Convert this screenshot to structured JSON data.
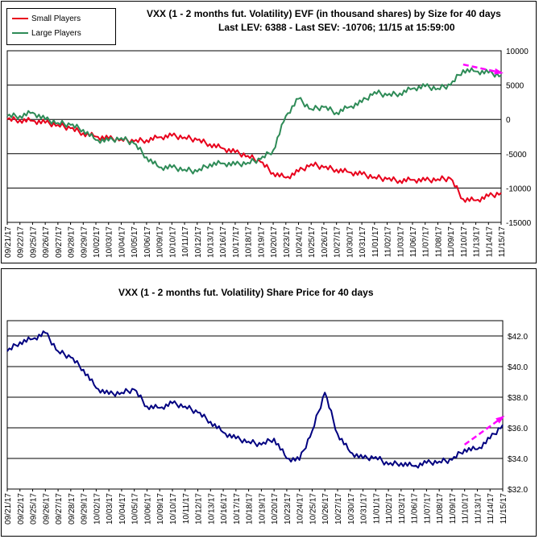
{
  "chart_data": [
    {
      "type": "line",
      "title": "VXX (1 - 2 months fut. Volatility) EVF (in thousand shares) by Size for 40 days",
      "subtitle": "Last LEV: 6388 - Last SEV: -10706; 11/15 at 15:59:00",
      "ylim": [
        -15000,
        10000
      ],
      "y_ticks": [
        "10000",
        "5000",
        "0",
        "-5000",
        "-10000",
        "-15000"
      ],
      "y_tick_values": [
        10000,
        5000,
        0,
        -5000,
        -10000,
        -15000
      ],
      "categories": [
        "09/21/17",
        "09/22/17",
        "09/25/17",
        "09/26/17",
        "09/27/17",
        "09/28/17",
        "09/29/17",
        "10/02/17",
        "10/03/17",
        "10/04/17",
        "10/05/17",
        "10/06/17",
        "10/09/17",
        "10/10/17",
        "10/11/17",
        "10/12/17",
        "10/13/17",
        "10/16/17",
        "10/17/17",
        "10/18/17",
        "10/19/17",
        "10/20/17",
        "10/23/17",
        "10/24/17",
        "10/25/17",
        "10/26/17",
        "10/27/17",
        "10/30/17",
        "10/31/17",
        "11/01/17",
        "11/02/17",
        "11/03/17",
        "11/06/17",
        "11/07/17",
        "11/08/17",
        "11/09/17",
        "11/10/17",
        "11/13/17",
        "11/14/17",
        "11/15/17"
      ],
      "series": [
        {
          "name": "Small Players",
          "color": "#e8001c",
          "values": [
            0,
            -100,
            -200,
            -500,
            -800,
            -1300,
            -2000,
            -2500,
            -2800,
            -2900,
            -3200,
            -3000,
            -2600,
            -2400,
            -2600,
            -3000,
            -3600,
            -4200,
            -4800,
            -5300,
            -6200,
            -7800,
            -8500,
            -7600,
            -6500,
            -7000,
            -7300,
            -7700,
            -8000,
            -8400,
            -8700,
            -8900,
            -8800,
            -8900,
            -8700,
            -8600,
            -11600,
            -11800,
            -11200,
            -10706
          ]
        },
        {
          "name": "Large Players",
          "color": "#2e8b57",
          "values": [
            500,
            500,
            1000,
            0,
            -500,
            -800,
            -1500,
            -3000,
            -3100,
            -2700,
            -3500,
            -5500,
            -7000,
            -7000,
            -7300,
            -7600,
            -6500,
            -6400,
            -6600,
            -6300,
            -5800,
            -4500,
            500,
            3000,
            1500,
            1800,
            1000,
            1800,
            2500,
            4000,
            3500,
            3800,
            4500,
            4800,
            4500,
            5000,
            7200,
            7000,
            6800,
            6388
          ]
        }
      ],
      "trend_arrow": {
        "color": "#ff00ff",
        "from": [
          36,
          8000
        ],
        "to": [
          39,
          6800
        ]
      }
    },
    {
      "type": "line",
      "title": "VXX (1 - 2 months fut. Volatility) Share Price for 40 days",
      "ylim": [
        32,
        43
      ],
      "y_ticks": [
        "$42.0",
        "$40.0",
        "$38.0",
        "$36.0",
        "$34.0",
        "$32.0"
      ],
      "y_tick_values": [
        42,
        40,
        38,
        36,
        34,
        32
      ],
      "categories": [
        "09/21/17",
        "09/22/17",
        "09/25/17",
        "09/26/17",
        "09/27/17",
        "09/28/17",
        "09/29/17",
        "10/02/17",
        "10/03/17",
        "10/04/17",
        "10/05/17",
        "10/06/17",
        "10/09/17",
        "10/10/17",
        "10/11/17",
        "10/12/17",
        "10/13/17",
        "10/16/17",
        "10/17/17",
        "10/18/17",
        "10/19/17",
        "10/20/17",
        "10/23/17",
        "10/24/17",
        "10/25/17",
        "10/26/17",
        "10/27/17",
        "10/30/17",
        "10/31/17",
        "11/01/17",
        "11/02/17",
        "11/03/17",
        "11/06/17",
        "11/07/17",
        "11/08/17",
        "11/09/17",
        "11/10/17",
        "11/13/17",
        "11/14/17",
        "11/15/17"
      ],
      "series": [
        {
          "name": "",
          "color": "#000080",
          "values": [
            41.0,
            41.6,
            41.8,
            42.2,
            41.0,
            40.6,
            39.8,
            38.6,
            38.2,
            38.3,
            38.5,
            37.4,
            37.3,
            37.6,
            37.4,
            37.0,
            36.4,
            35.7,
            35.3,
            35.1,
            34.9,
            35.3,
            34.0,
            33.9,
            35.8,
            38.3,
            35.6,
            34.4,
            34.0,
            34.1,
            33.6,
            33.7,
            33.5,
            33.7,
            33.8,
            33.9,
            34.6,
            34.6,
            35.3,
            36.2
          ]
        }
      ],
      "trend_arrow": {
        "color": "#ff00ff",
        "from": [
          36,
          34.9
        ],
        "to": [
          39,
          36.7
        ]
      }
    }
  ]
}
